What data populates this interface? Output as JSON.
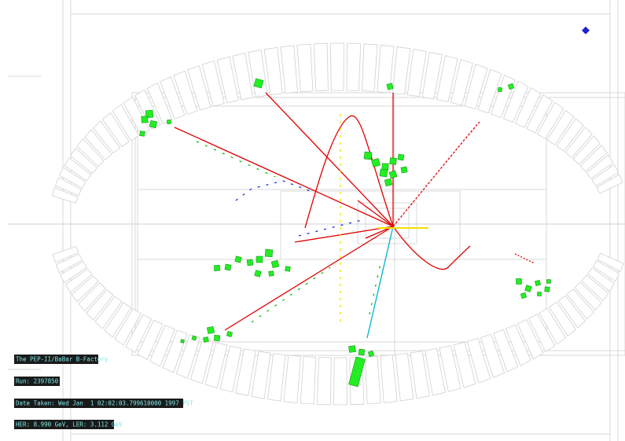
{
  "info": {
    "title": "The PEP-II/BaBar B-Factory",
    "run": "Run: 2397850",
    "date": "Date Taken: Wed Jan  1 02:02:03.799610000 1997 PST",
    "energy": "HER: 8.990 GeV, LER: 3.112 GeV"
  }
}
